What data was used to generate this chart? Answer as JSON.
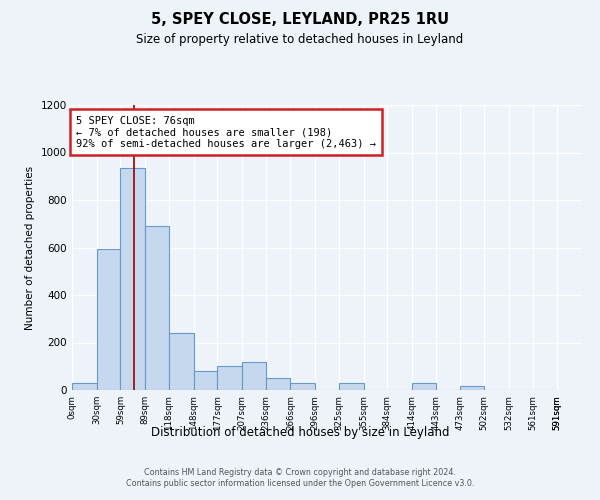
{
  "title1": "5, SPEY CLOSE, LEYLAND, PR25 1RU",
  "title2": "Size of property relative to detached houses in Leyland",
  "xlabel": "Distribution of detached houses by size in Leyland",
  "ylabel": "Number of detached properties",
  "footnote1": "Contains HM Land Registry data © Crown copyright and database right 2024.",
  "footnote2": "Contains public sector information licensed under the Open Government Licence v3.0.",
  "annotation_line1": "5 SPEY CLOSE: 76sqm",
  "annotation_line2": "← 7% of detached houses are smaller (198)",
  "annotation_line3": "92% of semi-detached houses are larger (2,463) →",
  "property_size": 76,
  "bin_edges": [
    0,
    30,
    59,
    89,
    118,
    148,
    177,
    207,
    236,
    266,
    296,
    325,
    355,
    384,
    414,
    443,
    473,
    502,
    532,
    561,
    591
  ],
  "bar_heights": [
    28,
    595,
    935,
    690,
    240,
    80,
    100,
    120,
    50,
    28,
    0,
    28,
    0,
    0,
    28,
    0,
    15,
    0,
    0,
    0
  ],
  "bar_color": "#c5d8ee",
  "bar_edge_color": "#6699cc",
  "vline_color": "#990000",
  "annotation_box_color": "#cc2222",
  "background_color": "#eef2f9",
  "ylim": [
    0,
    1200
  ],
  "xlim": [
    0,
    621
  ],
  "yticks": [
    0,
    200,
    400,
    600,
    800,
    1000,
    1200
  ]
}
